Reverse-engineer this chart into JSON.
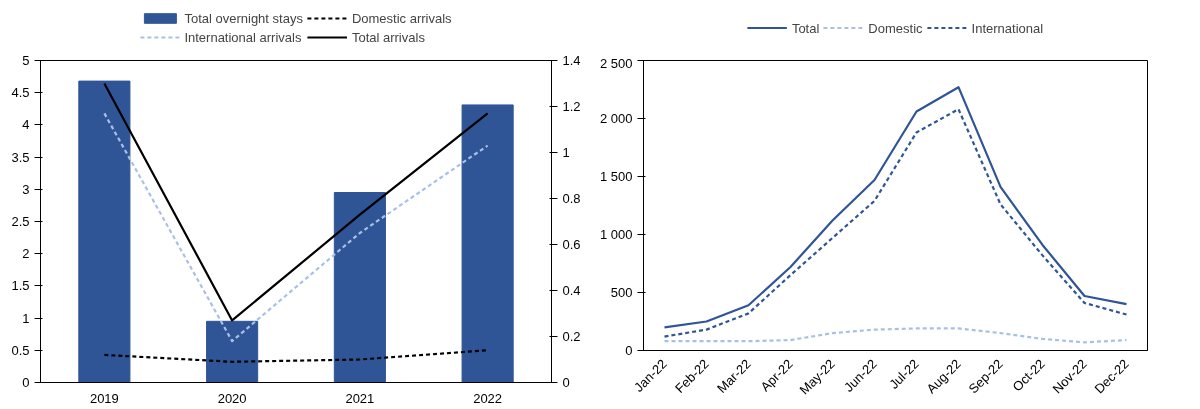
{
  "chart_data": [
    {
      "type": "bar",
      "categories": [
        "2019",
        "2020",
        "2021",
        "2022"
      ],
      "ylim": [
        0,
        5
      ],
      "yticks": [
        0,
        0.5,
        1,
        1.5,
        2,
        2.5,
        3,
        3.5,
        4,
        4.5,
        5
      ],
      "y2lim": [
        0,
        1.4
      ],
      "y2ticks": [
        0,
        0.2,
        0.4,
        0.6,
        0.8,
        1,
        1.2,
        1.4
      ],
      "grid": false,
      "legend": "top",
      "series": [
        {
          "name": "Total overnight stays",
          "type": "bar",
          "color": "#2f5597",
          "values": [
            4.68,
            0.95,
            2.95,
            4.31
          ]
        },
        {
          "name": "Domestic arrivals",
          "type": "line",
          "axis": "y2",
          "line_style": "dashed",
          "color": "#000000",
          "values": [
            0.12,
            0.09,
            0.1,
            0.14
          ]
        },
        {
          "name": "International arrivals",
          "type": "line",
          "axis": "y2",
          "line_style": "dashed",
          "color": "#a9c0e6",
          "values": [
            1.17,
            0.18,
            0.65,
            1.03
          ]
        },
        {
          "name": "Total arrivals",
          "type": "line",
          "axis": "y2",
          "line_style": "solid",
          "color": "#000000",
          "values": [
            1.3,
            0.27,
            0.73,
            1.17
          ]
        }
      ]
    },
    {
      "type": "line",
      "categories": [
        "Jan-22",
        "Feb-22",
        "Mar-22",
        "Apr-22",
        "May-22",
        "Jun-22",
        "Jul-22",
        "Aug-22",
        "Sep-22",
        "Oct-22",
        "Nov-22",
        "Dec-22"
      ],
      "ylim": [
        0,
        2500
      ],
      "yticks": [
        0,
        500,
        {
          "value": 1000,
          "label": "1 000"
        },
        {
          "value": 1500,
          "label": "1 500"
        },
        {
          "value": 2000,
          "label": "2 000"
        },
        {
          "value": 2500,
          "label": "2 500"
        }
      ],
      "grid": false,
      "legend": "top",
      "series": [
        {
          "name": "Total",
          "line_style": "solid",
          "color": "#2f5597",
          "values": [
            200,
            250,
            390,
            720,
            1120,
            1470,
            2060,
            2270,
            1410,
            910,
            470,
            400
          ]
        },
        {
          "name": "Domestic",
          "line_style": "dashed",
          "color": "#a9c0e6",
          "values": [
            80,
            80,
            80,
            90,
            150,
            180,
            190,
            190,
            150,
            100,
            70,
            90
          ]
        },
        {
          "name": "International",
          "line_style": "dashed",
          "color": "#2f5597",
          "values": [
            120,
            180,
            320,
            650,
            970,
            1290,
            1880,
            2080,
            1260,
            820,
            410,
            310
          ]
        }
      ]
    }
  ]
}
